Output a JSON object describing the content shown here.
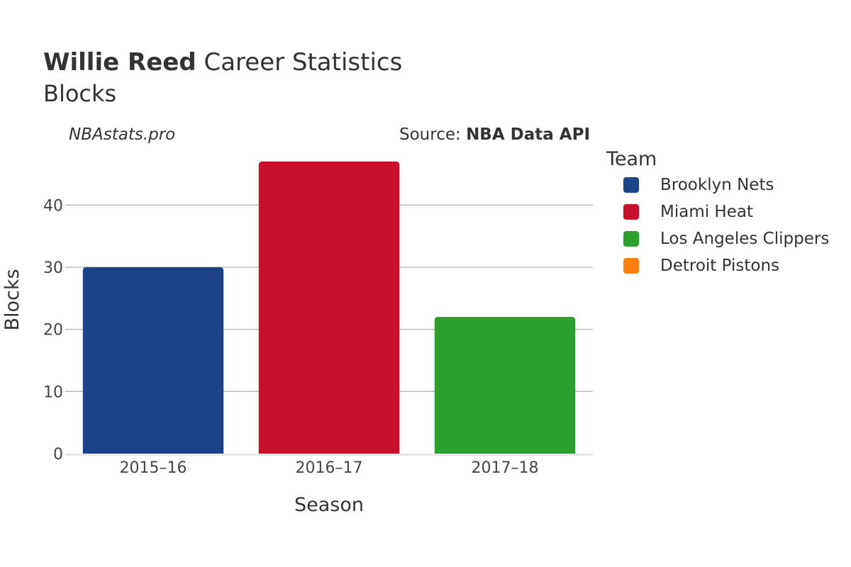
{
  "header": {
    "title_bold": "Willie Reed",
    "title_rest": " Career Statistics",
    "subtitle": "Blocks",
    "watermark": "NBAstats.pro",
    "source_prefix": "Source: ",
    "source_name": "NBA Data API"
  },
  "legend": {
    "title": "Team",
    "items": [
      {
        "label": "Brooklyn Nets",
        "color": "#1d428a"
      },
      {
        "label": "Miami Heat",
        "color": "#c8102e"
      },
      {
        "label": "Los Angeles Clippers",
        "color": "#2ca02c"
      },
      {
        "label": "Detroit Pistons",
        "color": "#ff7f0e"
      }
    ]
  },
  "chart_data": {
    "type": "bar",
    "xlabel": "Season",
    "ylabel": "Blocks",
    "categories": [
      "2015–16",
      "2016–17",
      "2017–18"
    ],
    "values": [
      30,
      47,
      22
    ],
    "bar_teams": [
      "Brooklyn Nets",
      "Miami Heat",
      "Los Angeles Clippers"
    ],
    "bar_colors": [
      "#1d428a",
      "#c8102e",
      "#2ca02c"
    ],
    "yticks": [
      0,
      10,
      20,
      30,
      40
    ],
    "ylim": [
      0,
      49.5
    ],
    "grid": true,
    "legend_position": "right"
  }
}
